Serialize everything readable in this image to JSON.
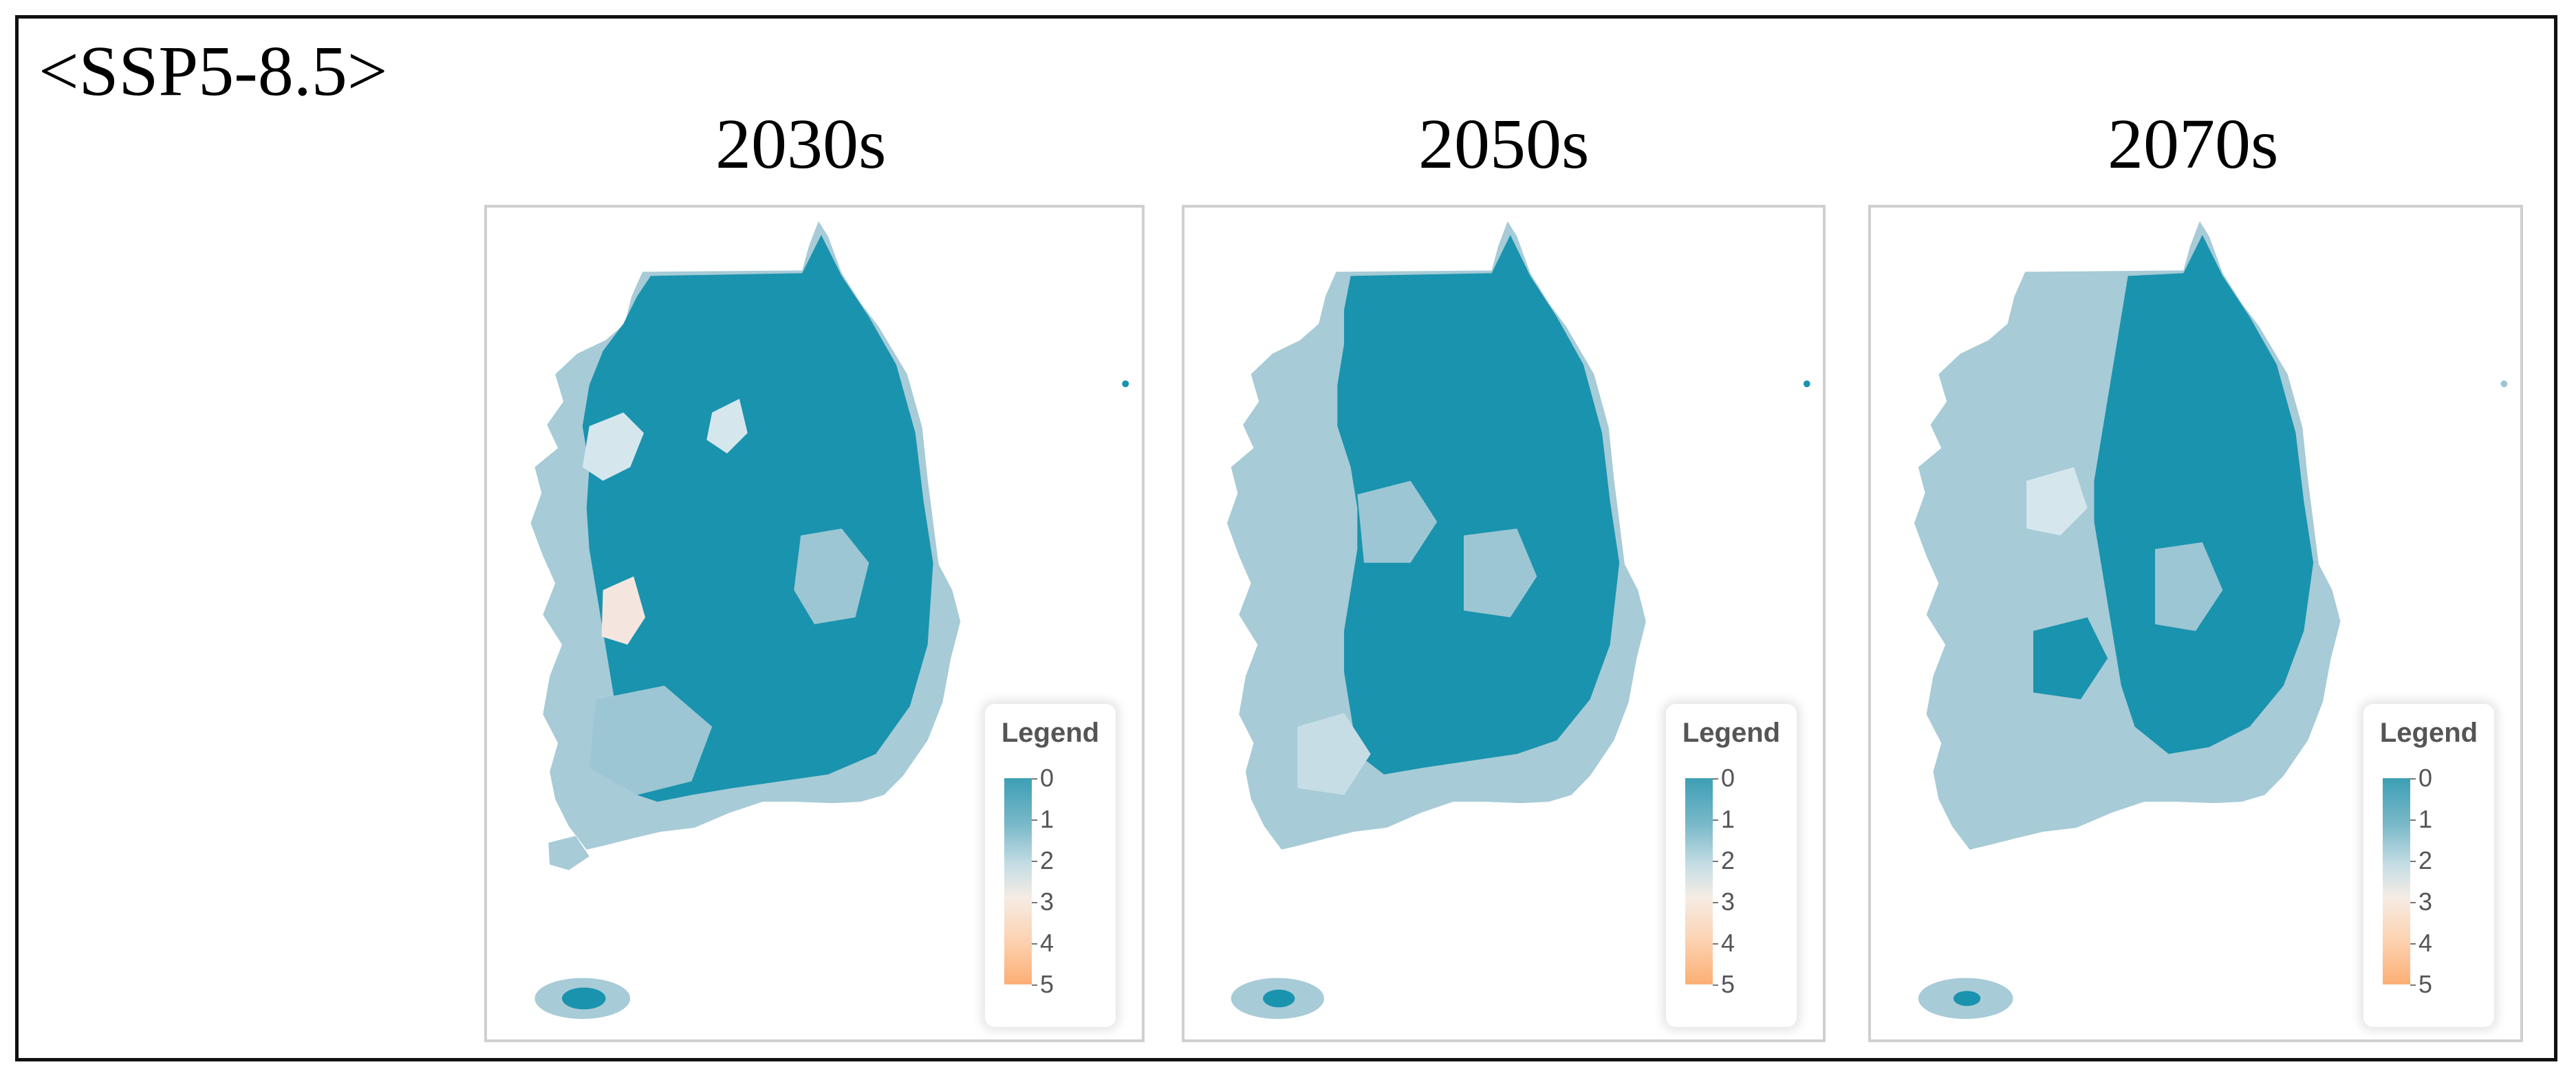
{
  "scenario_label": "<SSP5-8.5>",
  "colors": {
    "high": "#1a93ae",
    "mid": "#9cc6d3",
    "pale": "#d3e6ec",
    "peach": "#f7e3d6",
    "orange": "#fcae74",
    "panel_border": "#cfcfcf"
  },
  "panels": [
    {
      "title": "2030s",
      "legend_title": "Legend"
    },
    {
      "title": "2050s",
      "legend_title": "Legend"
    },
    {
      "title": "2070s",
      "legend_title": "Legend"
    }
  ],
  "legend": {
    "labels": [
      "0",
      "1",
      "2",
      "3",
      "4",
      "5"
    ]
  }
}
